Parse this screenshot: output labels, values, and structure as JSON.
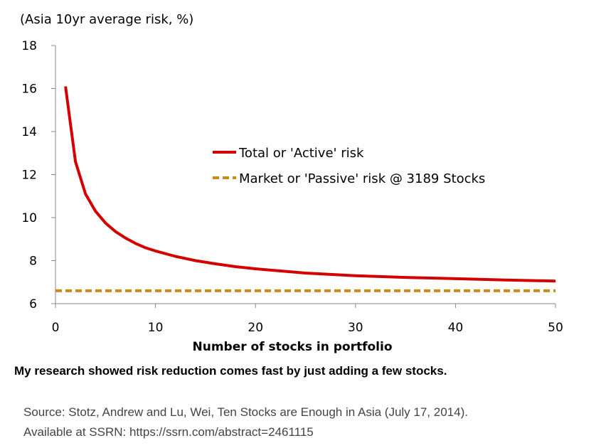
{
  "chart_data": {
    "type": "line",
    "ylabel": "(Asia 10yr average risk, %)",
    "xlabel": "Number of stocks in portfolio",
    "xlim": [
      0,
      50
    ],
    "ylim": [
      6,
      18
    ],
    "x_ticks": [
      0,
      10,
      20,
      30,
      40,
      50
    ],
    "y_ticks": [
      6,
      8,
      10,
      12,
      14,
      16,
      18
    ],
    "legend_position": "center-right",
    "grid": false,
    "series": [
      {
        "name": "Total or 'Active' risk",
        "color": "#d40000",
        "style": "solid",
        "x": [
          1,
          2,
          3,
          4,
          5,
          6,
          7,
          8,
          9,
          10,
          12,
          14,
          16,
          18,
          20,
          25,
          30,
          35,
          40,
          45,
          50
        ],
        "y": [
          16.1,
          12.6,
          11.1,
          10.3,
          9.75,
          9.35,
          9.05,
          8.8,
          8.6,
          8.45,
          8.2,
          8.0,
          7.85,
          7.72,
          7.62,
          7.42,
          7.3,
          7.22,
          7.16,
          7.1,
          7.05
        ]
      },
      {
        "name": "Market or 'Passive' risk @ 3189 Stocks",
        "color": "#cc8a1a",
        "style": "dashed",
        "x": [
          0,
          50
        ],
        "y": [
          6.6,
          6.6
        ]
      }
    ]
  },
  "caption": "My research showed risk reduction comes fast by just adding a few stocks.",
  "source_line1": "Source: Stotz, Andrew and Lu, Wei, Ten Stocks are Enough in Asia (July 17, 2014).",
  "source_line2": "Available at SSRN: https://ssrn.com/abstract=2461115"
}
